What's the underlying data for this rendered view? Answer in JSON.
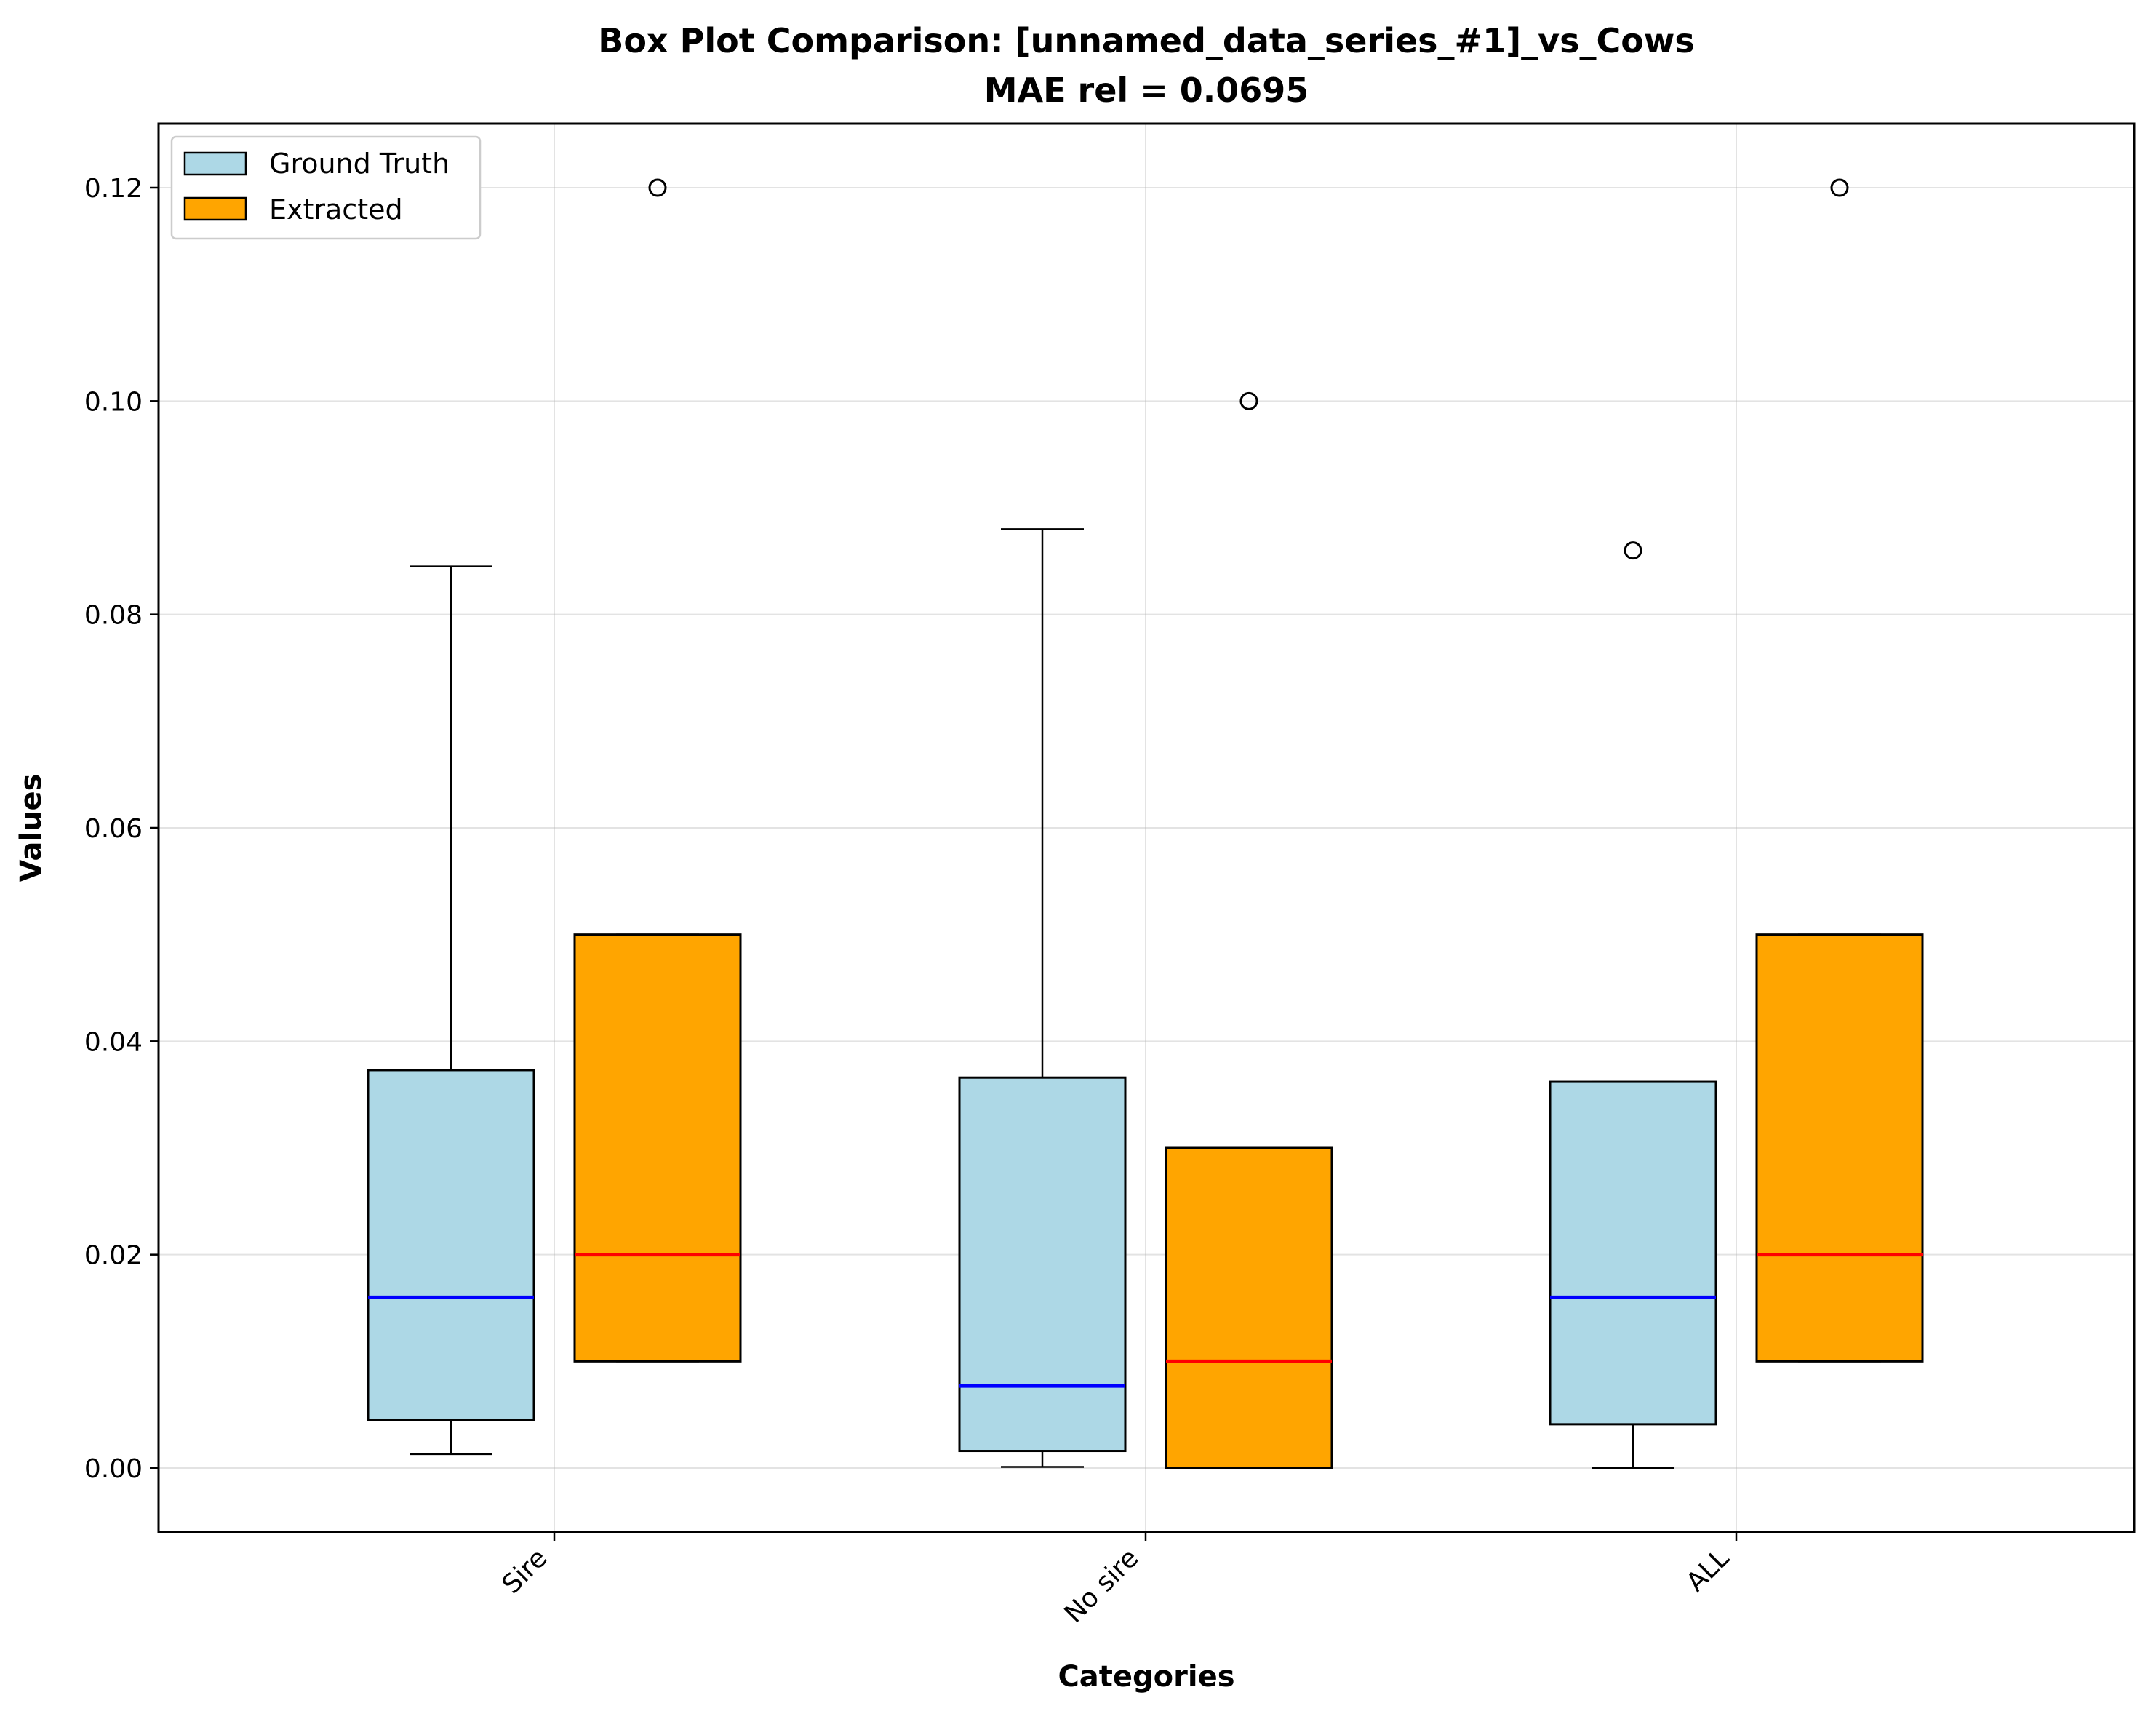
{
  "chart_data": {
    "type": "box",
    "title": "Box Plot Comparison: [unnamed_data_series_#1]_vs_Cows",
    "subtitle": "MAE rel = 0.0695",
    "xlabel": "Categories",
    "ylabel": "Values",
    "ylim": [
      -0.006,
      0.126
    ],
    "yticks": [
      "0.00",
      "0.02",
      "0.04",
      "0.06",
      "0.08",
      "0.10",
      "0.12"
    ],
    "categories": [
      "Sire",
      "No sire",
      "ALL"
    ],
    "grid": true,
    "legend_position": "top-left",
    "series": [
      {
        "name": "Ground Truth",
        "fill": "#add8e6",
        "median_color": "#0000ff",
        "boxes": [
          {
            "whisker_low": 0.0013,
            "q1": 0.0045,
            "median": 0.016,
            "q3": 0.0373,
            "whisker_high": 0.0845,
            "outliers": []
          },
          {
            "whisker_low": 0.0001,
            "q1": 0.0016,
            "median": 0.0077,
            "q3": 0.0366,
            "whisker_high": 0.088,
            "outliers": []
          },
          {
            "whisker_low": 0.0,
            "q1": 0.0041,
            "median": 0.016,
            "q3": 0.0362,
            "whisker_high": 0.0362,
            "outliers": [
              0.086
            ]
          }
        ]
      },
      {
        "name": "Extracted",
        "fill": "#ffa500",
        "median_color": "#ff0000",
        "boxes": [
          {
            "whisker_low": 0.01,
            "q1": 0.01,
            "median": 0.02,
            "q3": 0.05,
            "whisker_high": 0.05,
            "outliers": [
              0.12
            ]
          },
          {
            "whisker_low": 0.0,
            "q1": 0.0,
            "median": 0.01,
            "q3": 0.03,
            "whisker_high": 0.03,
            "outliers": [
              0.1
            ]
          },
          {
            "whisker_low": 0.01,
            "q1": 0.01,
            "median": 0.02,
            "q3": 0.05,
            "whisker_high": 0.05,
            "outliers": [
              0.12
            ]
          }
        ]
      }
    ]
  }
}
